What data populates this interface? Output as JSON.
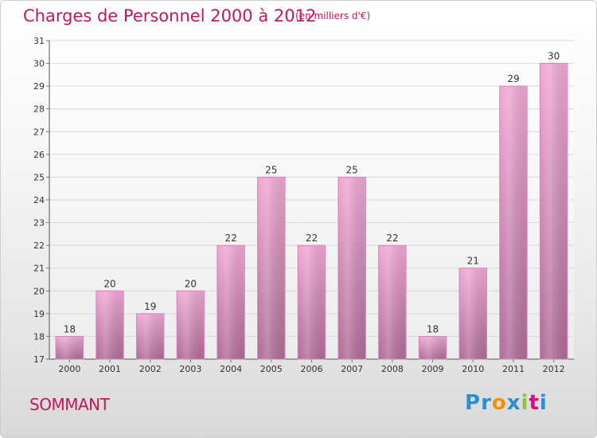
{
  "title": "Charges de Personnel 2000 à 2012",
  "subtitle": "(en milliers d'€)",
  "commune": "SOMMANT",
  "logo": {
    "letters": [
      "P",
      "r",
      "o",
      "x",
      "i",
      "t",
      "i"
    ],
    "colors": [
      "#2b8fd6",
      "#2b8fd6",
      "#f39200",
      "#2b8fd6",
      "#8cc63f",
      "#e6007e",
      "#2b8fd6"
    ]
  },
  "colors": {
    "accent": "#c2185b",
    "bar_top": "#f0a8d4",
    "bar_bottom": "#b06c98"
  },
  "chart_data": {
    "type": "bar",
    "categories": [
      "2000",
      "2001",
      "2002",
      "2003",
      "2004",
      "2005",
      "2006",
      "2007",
      "2008",
      "2009",
      "2010",
      "2011",
      "2012"
    ],
    "values": [
      18,
      20,
      19,
      20,
      22,
      25,
      22,
      25,
      22,
      18,
      21,
      29,
      30
    ],
    "ylim": [
      17,
      31
    ],
    "yticks": [
      17,
      18,
      19,
      20,
      21,
      22,
      23,
      24,
      25,
      26,
      27,
      28,
      29,
      30,
      31
    ],
    "grid": true,
    "data_labels": true
  }
}
